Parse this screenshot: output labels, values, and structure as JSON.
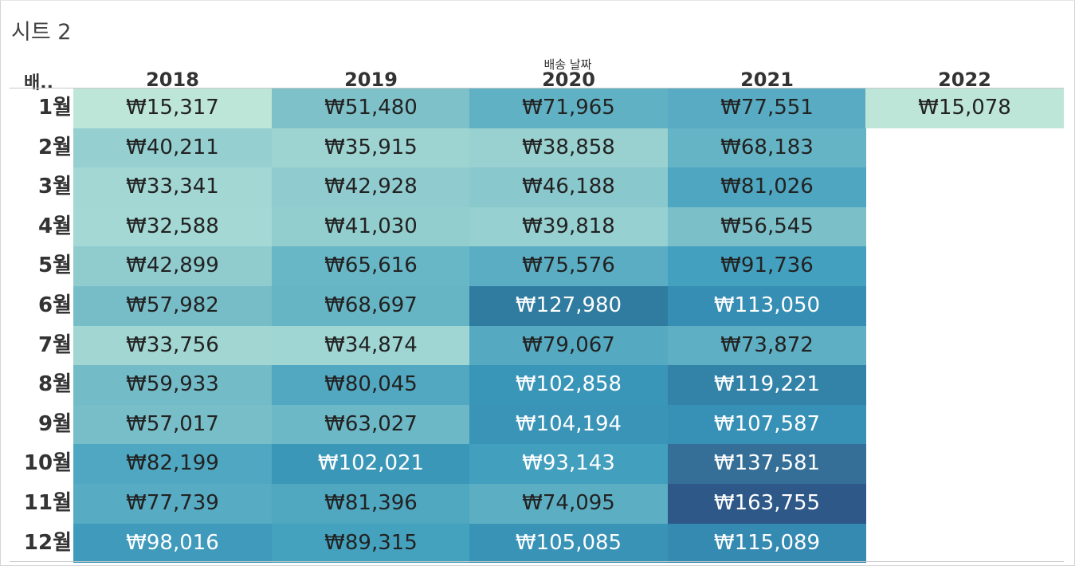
{
  "sheet_title": "시트 2",
  "column_field_label": "배송 날짜",
  "row_field_label": "배..",
  "years": [
    "2018",
    "2019",
    "2020",
    "2021",
    "2022"
  ],
  "rows": [
    {
      "label": "1월",
      "values": [
        "₩15,317",
        "₩51,480",
        "₩71,965",
        "₩77,551",
        "₩15,078"
      ],
      "colors": [
        "#bde6d9",
        "#7fc1c9",
        "#60b1c4",
        "#58abc2",
        "#bde6d9"
      ],
      "light": [
        false,
        false,
        false,
        false,
        false
      ]
    },
    {
      "label": "2월",
      "values": [
        "₩40,211",
        "₩35,915",
        "₩38,858",
        "₩68,183",
        ""
      ],
      "colors": [
        "#95cfd0",
        "#9dd4d2",
        "#98d1d0",
        "#65b4c5",
        ""
      ],
      "light": [
        false,
        false,
        false,
        false,
        false
      ]
    },
    {
      "label": "3월",
      "values": [
        "₩33,341",
        "₩42,928",
        "₩46,188",
        "₩81,026",
        ""
      ],
      "colors": [
        "#a2d7d4",
        "#90cccf",
        "#89c8cd",
        "#4ea6c1",
        ""
      ],
      "light": [
        false,
        false,
        false,
        false,
        false
      ]
    },
    {
      "label": "4월",
      "values": [
        "₩32,588",
        "₩41,030",
        "₩39,818",
        "₩56,545",
        ""
      ],
      "colors": [
        "#a3d8d4",
        "#93cecf",
        "#96d0d0",
        "#7bbfc8",
        ""
      ],
      "light": [
        false,
        false,
        false,
        false,
        false
      ]
    },
    {
      "label": "5월",
      "values": [
        "₩42,899",
        "₩65,616",
        "₩75,576",
        "₩91,736",
        ""
      ],
      "colors": [
        "#90ccce",
        "#68b7c6",
        "#5aadc3",
        "#43a0bf",
        ""
      ],
      "light": [
        false,
        false,
        false,
        false,
        true
      ]
    },
    {
      "label": "6월",
      "values": [
        "₩57,982",
        "₩68,697",
        "₩127,980",
        "₩113,050",
        ""
      ],
      "colors": [
        "#77bdc8",
        "#66b5c5",
        "#307ba0",
        "#368eb5",
        ""
      ],
      "light": [
        false,
        false,
        true,
        true,
        false
      ]
    },
    {
      "label": "7월",
      "values": [
        "₩33,756",
        "₩34,874",
        "₩79,067",
        "₩73,872",
        ""
      ],
      "colors": [
        "#a1d6d3",
        "#9fd5d3",
        "#55aac2",
        "#5eafc3",
        ""
      ],
      "light": [
        false,
        false,
        false,
        false,
        false
      ]
    },
    {
      "label": "8월",
      "values": [
        "₩59,933",
        "₩80,045",
        "₩102,858",
        "₩119,221",
        ""
      ],
      "colors": [
        "#73bbc7",
        "#52a8c1",
        "#3a96b8",
        "#3383a8",
        ""
      ],
      "light": [
        false,
        false,
        true,
        true,
        false
      ]
    },
    {
      "label": "9월",
      "values": [
        "₩57,017",
        "₩63,027",
        "₩104,194",
        "₩107,587",
        ""
      ],
      "colors": [
        "#78bec8",
        "#6cb8c6",
        "#3994b7",
        "#3790b6",
        ""
      ],
      "light": [
        false,
        false,
        true,
        true,
        false
      ]
    },
    {
      "label": "10월",
      "values": [
        "₩82,199",
        "₩102,021",
        "₩93,143",
        "₩137,581",
        ""
      ],
      "colors": [
        "#4fa7c1",
        "#3b97b8",
        "#439fbe",
        "#356f98",
        ""
      ],
      "light": [
        false,
        true,
        true,
        true,
        false
      ]
    },
    {
      "label": "11월",
      "values": [
        "₩77,739",
        "₩81,396",
        "₩74,095",
        "₩163,755",
        ""
      ],
      "colors": [
        "#57abc2",
        "#4fa7c0",
        "#5caec3",
        "#2d5888",
        ""
      ],
      "light": [
        false,
        false,
        false,
        true,
        false
      ]
    },
    {
      "label": "12월",
      "values": [
        "₩98,016",
        "₩89,315",
        "₩105,085",
        "₩115,089",
        ""
      ],
      "colors": [
        "#3f9abb",
        "#45a2bf",
        "#3993b7",
        "#358ab2",
        ""
      ],
      "light": [
        true,
        false,
        true,
        true,
        false
      ]
    }
  ]
}
